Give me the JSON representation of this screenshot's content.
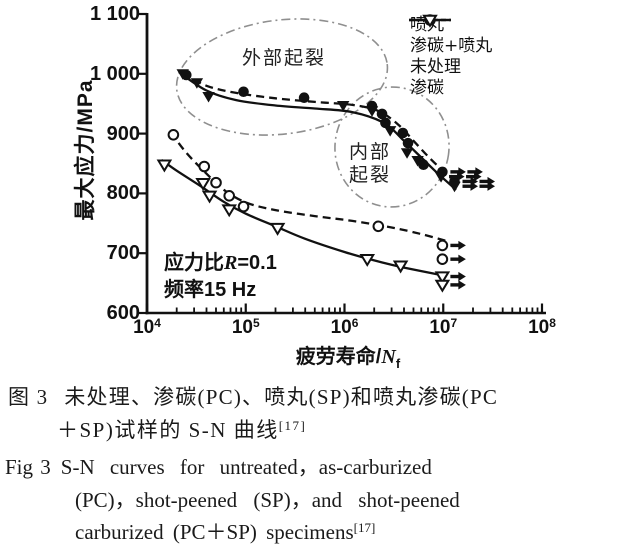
{
  "chart": {
    "y_axis": {
      "label": "最大应力/MPa",
      "ticks": [
        {
          "text": "1 100",
          "value": 1100
        },
        {
          "text": "1 000",
          "value": 1000
        },
        {
          "text": "900",
          "value": 900
        },
        {
          "text": "800",
          "value": 800
        },
        {
          "text": "700",
          "value": 700
        },
        {
          "text": "600",
          "value": 600
        }
      ]
    },
    "x_axis": {
      "prefix": "疲劳寿命/",
      "var": "N",
      "sub": "f",
      "base": "10",
      "exponents": [
        4,
        5,
        6,
        7,
        8
      ]
    },
    "annotations": {
      "external": "外部起裂",
      "internal1": "内部",
      "internal2": "起裂"
    },
    "params": {
      "ratio_prefix": "应力比",
      "ratio_var": "R",
      "ratio_rest": "=0.1",
      "freq": "频率15 Hz"
    },
    "ink_color": "#111111",
    "ellipse_color": "#8f8f8f"
  },
  "chart_data": {
    "type": "scatter",
    "x_scale": "log",
    "xlim": [
      10000,
      100000000
    ],
    "ylim": [
      600,
      1100
    ],
    "xlabel": "疲劳寿命/Nf",
    "ylabel": "最大应力/MPa",
    "x_ticks": [
      10000,
      100000,
      1000000,
      10000000,
      100000000
    ],
    "y_ticks": [
      600,
      700,
      800,
      900,
      1000,
      1100
    ],
    "grid": false,
    "legend_position": "top-right",
    "note": "arrow flag on a point (3rd element) marks run-out specimens, value = number of arrows",
    "series": [
      {
        "name": "喷丸",
        "marker": "filled-circle",
        "line": "dashed",
        "points": [
          [
            25000,
            998
          ],
          [
            95000,
            970
          ],
          [
            390000,
            960
          ],
          [
            1900000,
            946
          ],
          [
            2400000,
            933
          ],
          [
            2600000,
            918
          ],
          [
            3900000,
            901
          ],
          [
            4400000,
            884
          ],
          [
            6300000,
            848
          ],
          [
            9800000,
            836,
            2
          ],
          [
            13000000,
            820,
            2
          ]
        ],
        "trend": [
          [
            23000,
            1002
          ],
          [
            40000,
            980
          ],
          [
            80000,
            968
          ],
          [
            200000,
            959
          ],
          [
            500000,
            953
          ],
          [
            1200000,
            948
          ],
          [
            2200000,
            938
          ],
          [
            3500000,
            915
          ],
          [
            5000000,
            888
          ],
          [
            7000000,
            862
          ],
          [
            10000000,
            838
          ],
          [
            13500000,
            824
          ]
        ]
      },
      {
        "name": "渗碳+喷丸",
        "marker": "filled-triangle",
        "line": "solid",
        "points": [
          [
            23000,
            1000
          ],
          [
            32000,
            985
          ],
          [
            42000,
            962
          ],
          [
            970000,
            947
          ],
          [
            1900000,
            938
          ],
          [
            2900000,
            905
          ],
          [
            4300000,
            868
          ],
          [
            5500000,
            855
          ],
          [
            9500000,
            828,
            2
          ],
          [
            13000000,
            812,
            2
          ]
        ],
        "trend": [
          [
            21000,
            1003
          ],
          [
            40000,
            972
          ],
          [
            80000,
            956
          ],
          [
            200000,
            947
          ],
          [
            500000,
            942
          ],
          [
            1200000,
            936
          ],
          [
            2500000,
            918
          ],
          [
            4000000,
            888
          ],
          [
            6000000,
            860
          ],
          [
            9000000,
            832
          ],
          [
            13500000,
            806
          ]
        ]
      },
      {
        "name": "未处理",
        "marker": "open-circle",
        "line": "dashed",
        "points": [
          [
            18500,
            898
          ],
          [
            38000,
            845
          ],
          [
            50000,
            818
          ],
          [
            68000,
            796
          ],
          [
            95000,
            778
          ],
          [
            2200000,
            745
          ],
          [
            9800000,
            713,
            1
          ],
          [
            9800000,
            690,
            1
          ]
        ],
        "trend": [
          [
            17500,
            902
          ],
          [
            25000,
            868
          ],
          [
            40000,
            833
          ],
          [
            60000,
            806
          ],
          [
            100000,
            785
          ],
          [
            200000,
            772
          ],
          [
            500000,
            762
          ],
          [
            1200000,
            754
          ],
          [
            3000000,
            743
          ],
          [
            6000000,
            732
          ],
          [
            10500000,
            721
          ]
        ]
      },
      {
        "name": "渗碳",
        "marker": "open-triangle",
        "line": "solid",
        "points": [
          [
            15000,
            848
          ],
          [
            37000,
            817
          ],
          [
            43000,
            796
          ],
          [
            68000,
            773
          ],
          [
            210000,
            742
          ],
          [
            1700000,
            690
          ],
          [
            3700000,
            679
          ],
          [
            9800000,
            661,
            1
          ],
          [
            9800000,
            647,
            1
          ]
        ],
        "trend": [
          [
            14000,
            856
          ],
          [
            20000,
            838
          ],
          [
            35000,
            812
          ],
          [
            60000,
            786
          ],
          [
            100000,
            766
          ],
          [
            200000,
            745
          ],
          [
            400000,
            724
          ],
          [
            1000000,
            702
          ],
          [
            2000000,
            688
          ],
          [
            4000000,
            676
          ],
          [
            10500000,
            662
          ]
        ]
      }
    ],
    "annotations": [
      {
        "text": "外部起裂",
        "meaning": "surface crack initiation",
        "region_center_x": 280000,
        "region_center_y": 960
      },
      {
        "text": "内部起裂",
        "meaning": "internal crack initiation",
        "region_center_x": 3000000,
        "region_center_y": 880
      }
    ],
    "test_conditions": [
      "应力比R=0.1",
      "频率15 Hz"
    ]
  },
  "caption": {
    "zh": {
      "fig_label": "图 3",
      "line1": "未处理、渗碳(PC)、喷丸(SP)和喷丸渗碳(PC",
      "line2": "＋SP)试样的 S-N 曲线",
      "ref": "[17]"
    },
    "en": {
      "fig_label": "Fig 3",
      "line1": "S-N curves for untreated，as-carburized",
      "line2": "(PC)，shot-peened (SP)，and shot-peened",
      "line3": "carburized (PC＋SP) specimens",
      "ref": "[17]"
    }
  }
}
